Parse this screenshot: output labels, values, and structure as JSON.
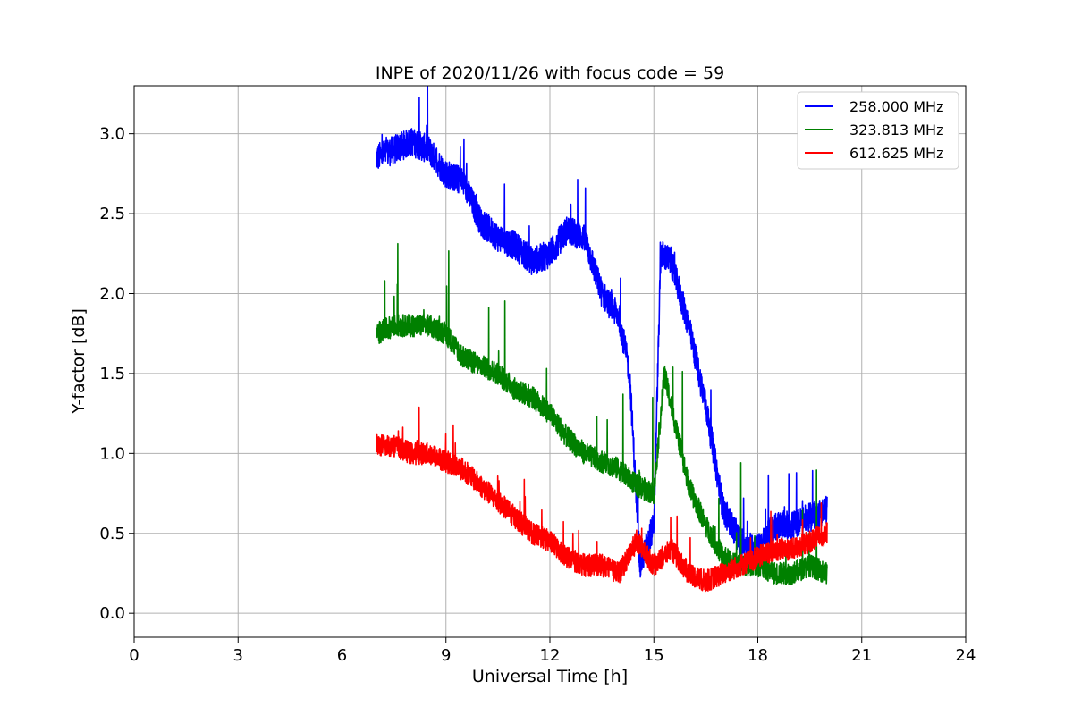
{
  "chart_data": {
    "type": "line",
    "title": "INPE of 2020/11/26 with focus code = 59",
    "xlabel": "Universal Time [h]",
    "ylabel": "Y-factor [dB]",
    "xlim": [
      0,
      24
    ],
    "ylim": [
      -0.15,
      3.3
    ],
    "xticks": [
      0,
      3,
      6,
      9,
      12,
      15,
      18,
      21,
      24
    ],
    "yticks": [
      0.0,
      0.5,
      1.0,
      1.5,
      2.0,
      2.5,
      3.0
    ],
    "xtick_labels": [
      "0",
      "3",
      "6",
      "9",
      "12",
      "15",
      "18",
      "21",
      "24"
    ],
    "ytick_labels": [
      "0.0",
      "0.5",
      "1.0",
      "1.5",
      "2.0",
      "2.5",
      "3.0"
    ],
    "grid": true,
    "legend_position": "top-right",
    "series": [
      {
        "name": "258.000 MHz",
        "color": "#0000ff",
        "x": [
          7.0,
          7.5,
          8.0,
          8.5,
          9.0,
          9.5,
          10.0,
          10.5,
          11.0,
          11.5,
          12.0,
          12.5,
          13.0,
          13.5,
          14.0,
          14.3,
          14.6,
          15.0,
          15.2,
          15.5,
          16.0,
          16.5,
          17.0,
          17.5,
          18.0,
          18.5,
          19.0,
          19.5,
          20.0
        ],
        "values": [
          2.85,
          2.9,
          2.95,
          2.9,
          2.75,
          2.7,
          2.45,
          2.35,
          2.3,
          2.2,
          2.25,
          2.4,
          2.35,
          2.0,
          1.85,
          1.5,
          0.3,
          0.55,
          2.25,
          2.2,
          1.8,
          1.3,
          0.65,
          0.45,
          0.4,
          0.55,
          0.55,
          0.6,
          0.65
        ]
      },
      {
        "name": "323.813 MHz",
        "color": "#008000",
        "x": [
          7.0,
          7.5,
          8.0,
          8.5,
          9.0,
          9.5,
          10.0,
          10.5,
          11.0,
          11.5,
          12.0,
          12.5,
          13.0,
          13.5,
          14.0,
          14.5,
          15.0,
          15.3,
          15.6,
          16.0,
          16.5,
          17.0,
          17.5,
          18.0,
          18.5,
          19.0,
          19.5,
          20.0
        ],
        "values": [
          1.75,
          1.8,
          1.8,
          1.8,
          1.75,
          1.6,
          1.55,
          1.5,
          1.4,
          1.35,
          1.25,
          1.1,
          1.0,
          0.95,
          0.9,
          0.8,
          0.75,
          1.5,
          1.2,
          0.8,
          0.55,
          0.35,
          0.3,
          0.3,
          0.25,
          0.25,
          0.3,
          0.25
        ]
      },
      {
        "name": "612.625 MHz",
        "color": "#ff0000",
        "x": [
          7.0,
          7.5,
          8.0,
          8.5,
          9.0,
          9.5,
          10.0,
          10.5,
          11.0,
          11.5,
          12.0,
          12.5,
          13.0,
          13.5,
          14.0,
          14.5,
          15.0,
          15.5,
          16.0,
          16.5,
          17.0,
          17.5,
          18.0,
          18.5,
          19.0,
          19.5,
          20.0
        ],
        "values": [
          1.05,
          1.05,
          1.0,
          1.0,
          0.95,
          0.9,
          0.8,
          0.7,
          0.6,
          0.5,
          0.45,
          0.35,
          0.3,
          0.3,
          0.25,
          0.45,
          0.3,
          0.4,
          0.25,
          0.2,
          0.25,
          0.3,
          0.35,
          0.4,
          0.4,
          0.45,
          0.5
        ]
      }
    ]
  }
}
